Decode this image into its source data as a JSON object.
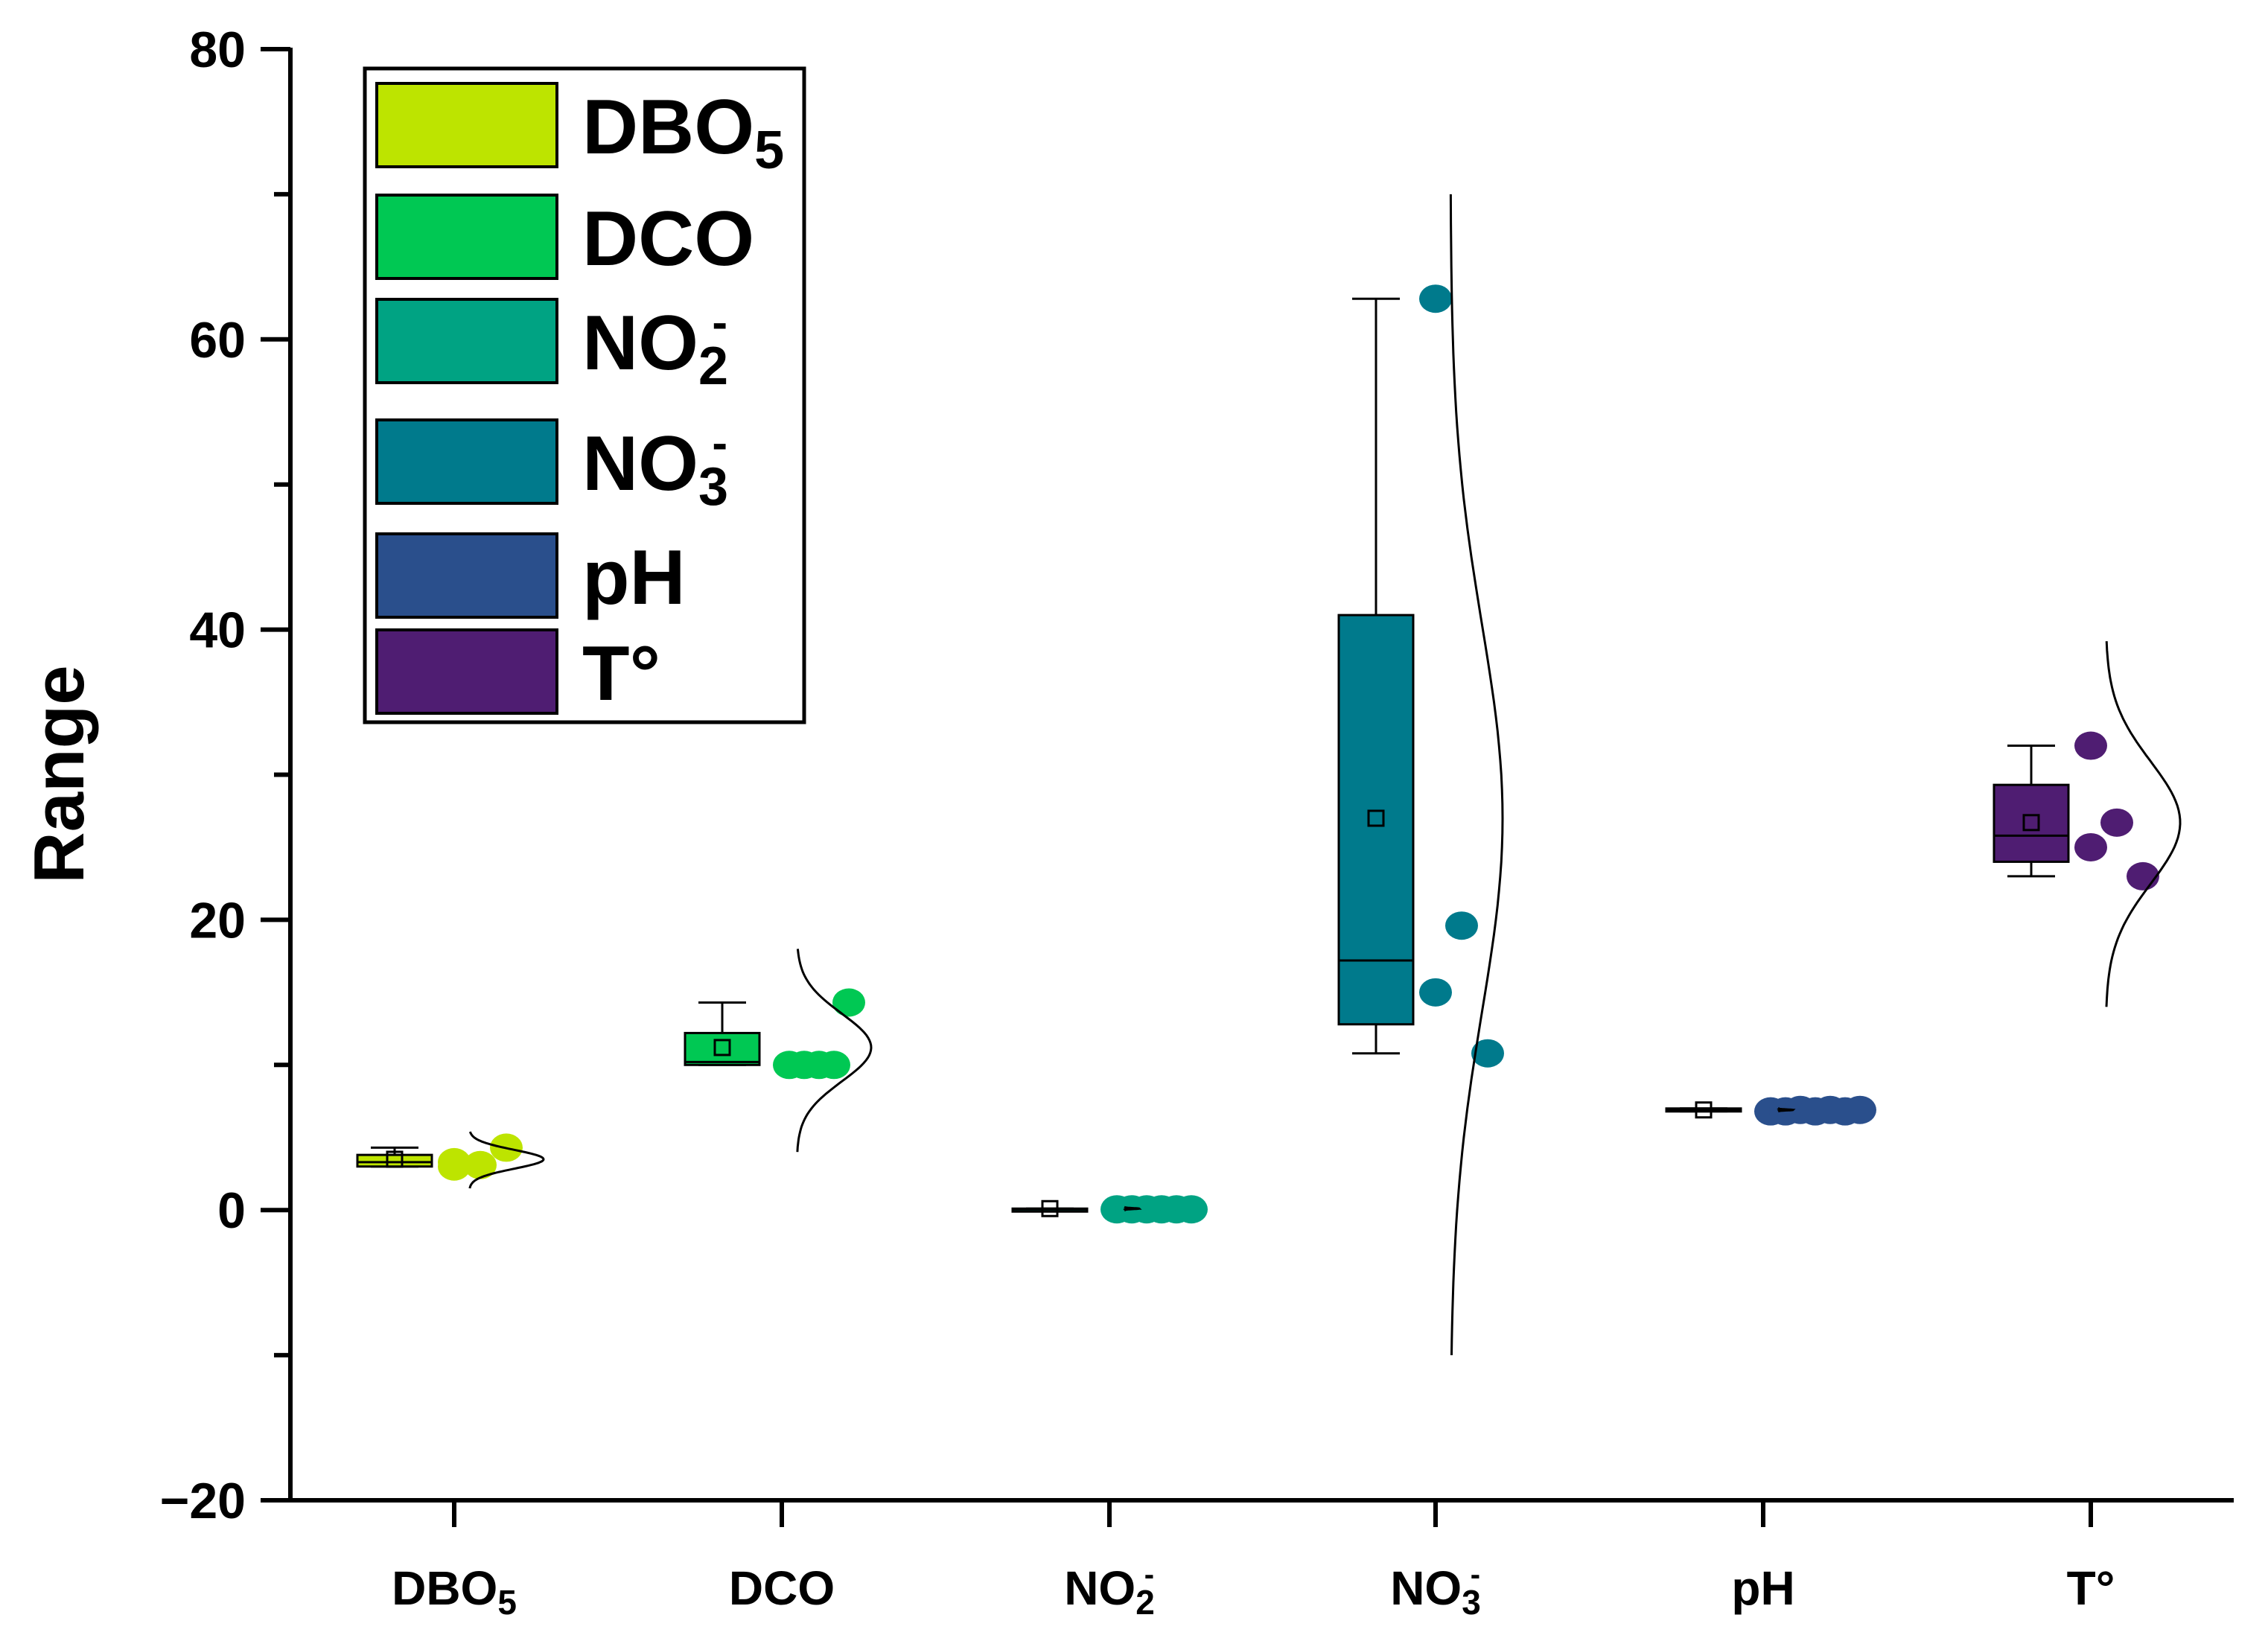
{
  "chart_data": {
    "type": "box",
    "title": "",
    "xlabel": "",
    "ylabel": "Range",
    "ylim": [
      -20,
      80
    ],
    "yticks": [
      -20,
      0,
      20,
      40,
      60,
      80
    ],
    "grid": false,
    "legend_position": "top-left",
    "categories": [
      {
        "base": "DBO",
        "sub": "5",
        "sup": ""
      },
      {
        "base": "DCO",
        "sub": "",
        "sup": ""
      },
      {
        "base": "NO",
        "sub": "2",
        "sup": "-"
      },
      {
        "base": "NO",
        "sub": "3",
        "sup": "-"
      },
      {
        "base": "pH",
        "sub": "",
        "sup": ""
      },
      {
        "base": "T°",
        "sub": "",
        "sup": ""
      }
    ],
    "series": [
      {
        "color": "#bde400",
        "whisker_low": 3.0,
        "q1": 3.0,
        "median": 3.3,
        "q3": 3.8,
        "whisker_high": 4.3,
        "mean": 3.5,
        "points": [
          3.0,
          3.1,
          3.3,
          4.3
        ],
        "curve_range": [
          1.5,
          5.4
        ]
      },
      {
        "color": "#00c853",
        "whisker_low": 10.0,
        "q1": 10.0,
        "median": 10.2,
        "q3": 12.2,
        "whisker_high": 14.3,
        "mean": 11.2,
        "points": [
          10.0,
          10.0,
          10.0,
          10.0,
          14.3
        ],
        "curve_range": [
          4.0,
          18.0
        ]
      },
      {
        "color": "#00a383",
        "whisker_low": 0.0,
        "q1": 0.0,
        "median": 0.05,
        "q3": 0.1,
        "whisker_high": 0.1,
        "mean": 0.1,
        "points": [
          0.05,
          0.05,
          0.05,
          0.05,
          0.05,
          0.05
        ],
        "curve_range": [
          0.0,
          0.2
        ]
      },
      {
        "color": "#007a8c",
        "whisker_low": 10.8,
        "q1": 12.8,
        "median": 17.2,
        "q3": 41.0,
        "whisker_high": 62.8,
        "mean": 27.0,
        "points": [
          62.8,
          19.6,
          15.0,
          10.8
        ],
        "curve_range": [
          -10.0,
          70.0
        ]
      },
      {
        "color": "#2a4f8c",
        "whisker_low": 6.8,
        "q1": 6.8,
        "median": 6.9,
        "q3": 7.0,
        "whisker_high": 7.0,
        "mean": 6.9,
        "points": [
          6.8,
          6.8,
          6.9,
          6.8,
          6.9,
          6.8,
          6.9
        ],
        "curve_range": [
          6.8,
          7.0
        ]
      },
      {
        "color": "#4f1d72",
        "whisker_low": 23.0,
        "q1": 24.0,
        "median": 25.8,
        "q3": 29.3,
        "whisker_high": 32.0,
        "mean": 26.7,
        "points": [
          32.0,
          26.7,
          25.0,
          23.0
        ],
        "curve_range": [
          14.0,
          39.2
        ]
      }
    ],
    "legend": [
      {
        "base": "DBO",
        "sub": "5",
        "sup": "",
        "color": "#bde400"
      },
      {
        "base": "DCO",
        "sub": "",
        "sup": "",
        "color": "#00c853"
      },
      {
        "base": "NO",
        "sub": "2",
        "sup": "-",
        "color": "#00a383"
      },
      {
        "base": "NO",
        "sub": "3",
        "sup": "-",
        "color": "#007a8c"
      },
      {
        "base": "pH",
        "sub": "",
        "sup": "",
        "color": "#2a4f8c"
      },
      {
        "base": "T°",
        "sub": "",
        "sup": "",
        "color": "#4f1d72"
      }
    ]
  }
}
